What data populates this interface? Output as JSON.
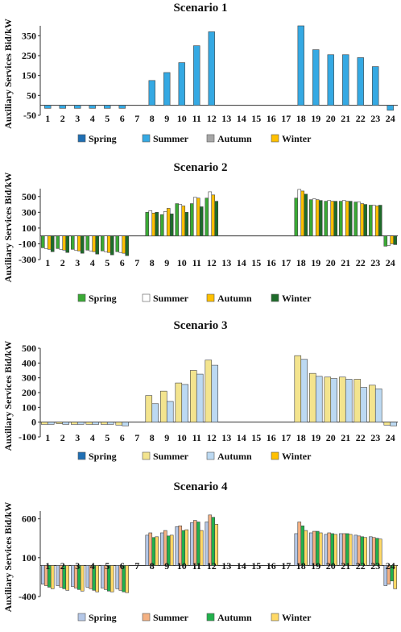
{
  "chart_data": [
    {
      "type": "bar",
      "title": "Scenario 1",
      "ylabel": "Auxiliary Services Bid/kW",
      "ylim": [
        -50,
        400
      ],
      "yticks": [
        -50,
        50,
        150,
        250,
        350
      ],
      "categories": [
        "1",
        "2",
        "3",
        "4",
        "5",
        "6",
        "7",
        "8",
        "9",
        "10",
        "11",
        "12",
        "13",
        "14",
        "15",
        "16",
        "17",
        "18",
        "19",
        "20",
        "21",
        "22",
        "23",
        "24"
      ],
      "legend": [
        "Spring",
        "Summer",
        "Autumn",
        "Winter"
      ],
      "legend_colors": [
        "#1f6fb4",
        "#35a9e3",
        "#a6a6a6",
        "#ffc000"
      ],
      "series": [
        {
          "name": "Summer",
          "color": "#35a9e3",
          "values": [
            -15,
            -15,
            -15,
            -15,
            -15,
            -15,
            0,
            125,
            165,
            215,
            300,
            370,
            0,
            0,
            0,
            0,
            0,
            400,
            280,
            255,
            255,
            240,
            195,
            -25
          ]
        }
      ]
    },
    {
      "type": "bar",
      "title": "Scenario 2",
      "ylabel": "Auxiliary Services Bid/kW",
      "ylim": [
        -300,
        600
      ],
      "yticks": [
        -300,
        -100,
        100,
        300,
        500
      ],
      "categories": [
        "1",
        "2",
        "3",
        "4",
        "5",
        "6",
        "7",
        "8",
        "9",
        "10",
        "11",
        "12",
        "13",
        "14",
        "15",
        "16",
        "17",
        "18",
        "19",
        "20",
        "21",
        "22",
        "23",
        "24"
      ],
      "legend": [
        "Spring",
        "Summer",
        "Autumn",
        "Winter"
      ],
      "legend_colors": [
        "#3aaa35",
        "#ffffff",
        "#ffc000",
        "#1e6b2a"
      ],
      "series": [
        {
          "name": "Spring",
          "color": "#3aaa35",
          "values": [
            -150,
            -160,
            -170,
            -180,
            -190,
            -200,
            0,
            300,
            270,
            410,
            410,
            480,
            0,
            0,
            0,
            0,
            0,
            480,
            460,
            440,
            440,
            430,
            390,
            -130
          ]
        },
        {
          "name": "Summer",
          "color": "#ffffff",
          "values": [
            -160,
            -170,
            -180,
            -190,
            -200,
            -210,
            0,
            320,
            310,
            400,
            490,
            560,
            0,
            0,
            0,
            0,
            0,
            590,
            470,
            450,
            450,
            430,
            390,
            -120
          ]
        },
        {
          "name": "Autumn",
          "color": "#ffc000",
          "values": [
            -170,
            -180,
            -190,
            -200,
            -210,
            -220,
            0,
            290,
            350,
            380,
            480,
            520,
            0,
            0,
            0,
            0,
            0,
            570,
            460,
            440,
            440,
            410,
            380,
            -100
          ]
        },
        {
          "name": "Winter",
          "color": "#1e6b2a",
          "values": [
            -200,
            -210,
            -220,
            -230,
            -240,
            -250,
            0,
            300,
            280,
            300,
            370,
            440,
            0,
            0,
            0,
            0,
            0,
            530,
            450,
            440,
            440,
            400,
            390,
            -110
          ]
        }
      ]
    },
    {
      "type": "bar",
      "title": "Scenario 3",
      "ylabel": "Auxiliary Services Bid/kW",
      "ylim": [
        -100,
        500
      ],
      "yticks": [
        -100,
        0,
        100,
        200,
        300,
        400,
        500
      ],
      "categories": [
        "1",
        "2",
        "3",
        "4",
        "5",
        "6",
        "7",
        "8",
        "9",
        "10",
        "11",
        "12",
        "13",
        "14",
        "15",
        "16",
        "17",
        "18",
        "19",
        "20",
        "21",
        "22",
        "23",
        "24"
      ],
      "legend": [
        "Spring",
        "Summer",
        "Autumn",
        "Winter"
      ],
      "legend_colors": [
        "#1f6fb4",
        "#f3e48e",
        "#bcd9f2",
        "#ffc000"
      ],
      "series": [
        {
          "name": "Summer",
          "color": "#f3e48e",
          "values": [
            -15,
            -10,
            -15,
            -15,
            -15,
            -20,
            0,
            180,
            210,
            265,
            350,
            420,
            0,
            0,
            0,
            0,
            0,
            450,
            330,
            305,
            305,
            290,
            250,
            -20
          ]
        },
        {
          "name": "Autumn",
          "color": "#bcd9f2",
          "values": [
            -15,
            -15,
            -15,
            -15,
            -15,
            -25,
            0,
            125,
            140,
            255,
            325,
            385,
            0,
            0,
            0,
            0,
            0,
            425,
            310,
            295,
            290,
            235,
            225,
            -25
          ]
        }
      ]
    },
    {
      "type": "bar",
      "title": "Scenario 4",
      "ylabel": "Auxiliary Services Bid/kW",
      "ylim": [
        -400,
        700
      ],
      "yticks": [
        -400,
        100,
        600
      ],
      "categories": [
        "1",
        "2",
        "3",
        "4",
        "5",
        "6",
        "7",
        "8",
        "9",
        "10",
        "11",
        "12",
        "13",
        "14",
        "15",
        "16",
        "17",
        "18",
        "19",
        "20",
        "21",
        "22",
        "23",
        "24"
      ],
      "legend": [
        "Spring",
        "Summer",
        "Autumn",
        "Winter"
      ],
      "legend_colors": [
        "#b4c7e7",
        "#f4b183",
        "#22b14c",
        "#ffd966"
      ],
      "series": [
        {
          "name": "Spring",
          "color": "#b4c7e7",
          "values": [
            -240,
            -260,
            -270,
            -280,
            -290,
            -300,
            0,
            390,
            420,
            500,
            550,
            560,
            0,
            0,
            0,
            0,
            0,
            410,
            420,
            400,
            410,
            390,
            370,
            -260
          ]
        },
        {
          "name": "Summer",
          "color": "#f4b183",
          "values": [
            -260,
            -280,
            -290,
            -300,
            -310,
            -320,
            0,
            420,
            450,
            510,
            580,
            650,
            0,
            0,
            0,
            0,
            0,
            560,
            440,
            420,
            410,
            380,
            360,
            -240
          ]
        },
        {
          "name": "Autumn",
          "color": "#22b14c",
          "values": [
            -280,
            -300,
            -310,
            -320,
            -330,
            -340,
            0,
            360,
            380,
            450,
            560,
            620,
            0,
            0,
            0,
            0,
            0,
            510,
            440,
            410,
            410,
            370,
            350,
            -200
          ]
        },
        {
          "name": "Winter",
          "color": "#ffd966",
          "values": [
            -300,
            -320,
            -330,
            -340,
            -340,
            -350,
            0,
            370,
            390,
            460,
            450,
            530,
            0,
            0,
            0,
            0,
            0,
            450,
            420,
            400,
            400,
            360,
            340,
            -300
          ]
        }
      ]
    }
  ]
}
